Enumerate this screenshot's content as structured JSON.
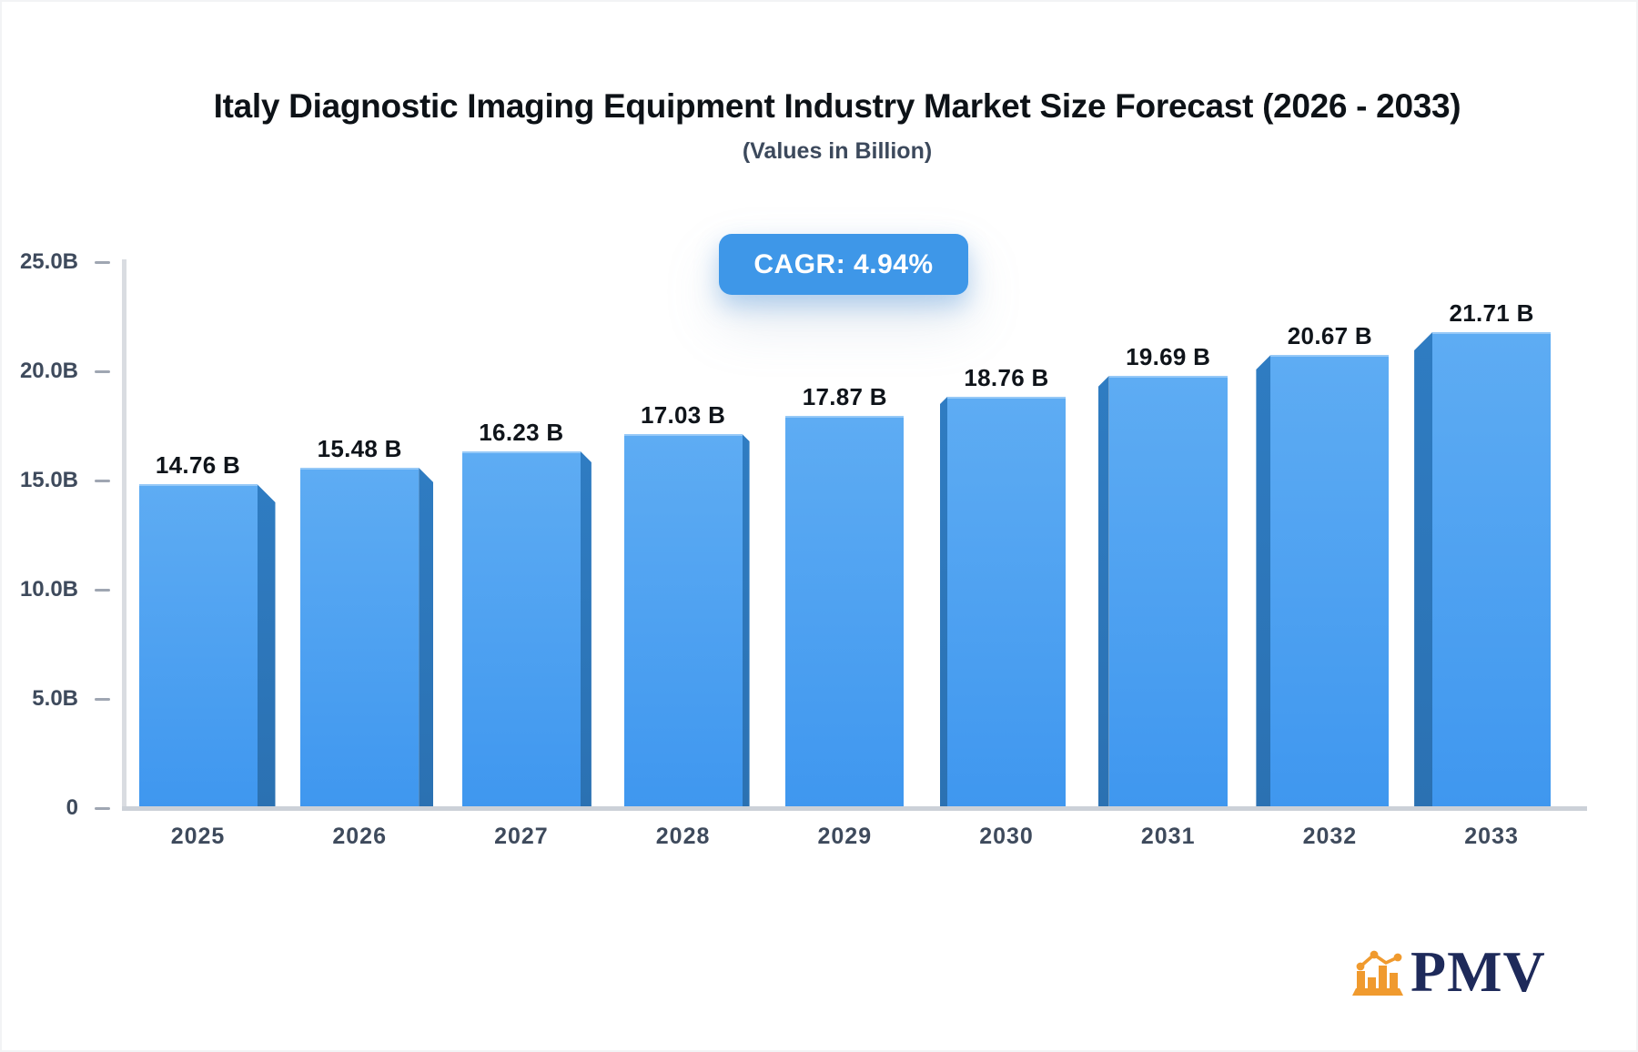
{
  "title": "Italy Diagnostic Imaging Equipment Industry Market Size Forecast (2026 - 2033)",
  "subtitle": "(Values in Billion)",
  "badge": {
    "text": "CAGR: 4.94%"
  },
  "logo": {
    "text": "PMV",
    "icon": "bar-chart-logo-icon"
  },
  "colors": {
    "title_text": "#0d1217",
    "subtitle_text": "#3c495c",
    "badge_bg": "#3e97e8",
    "axis_text": "#3e4a5c",
    "label_text": "#0f141a",
    "axis_line": "#d9dce1",
    "baseline": "#ccd1d8",
    "tick_dash": "#9fa6b2",
    "bar_face_top": "#5eacf3",
    "bar_face_bottom": "#3f97ef",
    "bar_side_top": "#2f7cc2",
    "bar_side_bottom": "#2b71b2",
    "logo_orange": "#f09a2e",
    "logo_navy": "#1e2a5a"
  },
  "chart_data": {
    "type": "bar",
    "title": "Italy Diagnostic Imaging Equipment Industry Market Size Forecast (2026 - 2033)",
    "subtitle": "(Values in Billion)",
    "annotation": "CAGR: 4.94%",
    "unit": "Billion",
    "categories": [
      "2025",
      "2026",
      "2027",
      "2028",
      "2029",
      "2030",
      "2031",
      "2032",
      "2033"
    ],
    "values": [
      14.76,
      15.48,
      16.23,
      17.03,
      17.87,
      18.76,
      19.69,
      20.67,
      21.71
    ],
    "data_labels": [
      "14.76 B",
      "15.48 B",
      "16.23 B",
      "17.03 B",
      "17.87 B",
      "18.76 B",
      "19.69 B",
      "20.67 B",
      "21.71 B"
    ],
    "ylim": [
      0,
      25
    ],
    "yticks": [
      {
        "value": 0,
        "label": "0"
      },
      {
        "value": 5,
        "label": "5.0B"
      },
      {
        "value": 10,
        "label": "10.0B"
      },
      {
        "value": 15,
        "label": "15.0B"
      },
      {
        "value": 20,
        "label": "20.0B"
      },
      {
        "value": 25,
        "label": "25.0B"
      }
    ],
    "grid": false,
    "legend": false,
    "bar_style": "3d-perspective-toward-center"
  }
}
